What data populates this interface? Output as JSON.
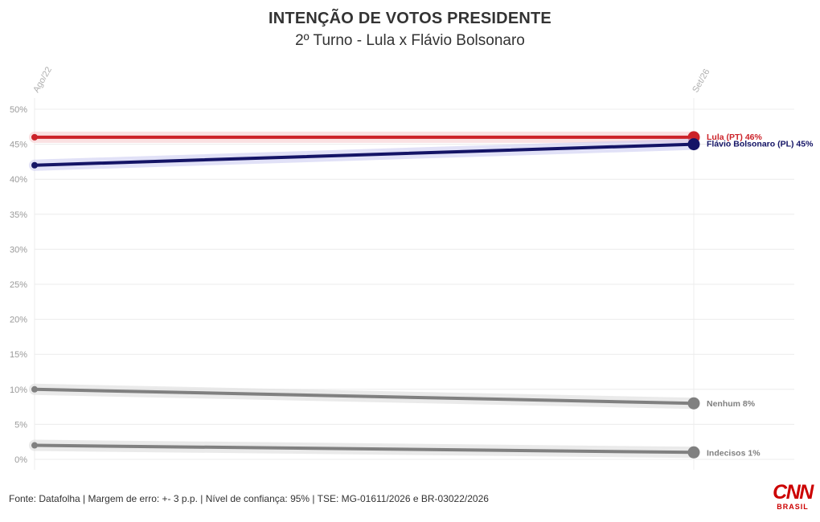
{
  "header": {
    "title": "INTENÇÃO DE VOTOS PRESIDENTE",
    "subtitle": "2º Turno - Lula x Flávio Bolsonaro"
  },
  "footer": {
    "source": "Fonte: Datafolha | Margem de erro: +- 3 p.p. | Nível de confiança: 95% | TSE: MG-01611/2026 e BR-03022/2026"
  },
  "logo": {
    "text": "CNN",
    "subtext": "BRASIL"
  },
  "chart_data": {
    "type": "line",
    "x": [
      "Ago/22",
      "Set/26"
    ],
    "y_ticks": [
      "0%",
      "5%",
      "10%",
      "15%",
      "20%",
      "25%",
      "30%",
      "35%",
      "40%",
      "45%",
      "50%"
    ],
    "ylim": [
      0,
      50
    ],
    "grid": true,
    "series": [
      {
        "name": "Lula (PT)",
        "values": [
          46,
          46
        ],
        "color": "#cc2229",
        "end_label": "Lula (PT) 46%"
      },
      {
        "name": "Flávio Bolsonaro (PL)",
        "values": [
          42,
          45
        ],
        "color": "#141466",
        "end_label": "Flávio Bolsonaro (PL) 45%"
      },
      {
        "name": "Nenhum",
        "values": [
          10,
          8
        ],
        "color": "#808080",
        "end_label": "Nenhum 8%"
      },
      {
        "name": "Indecisos",
        "values": [
          2,
          1
        ],
        "color": "#808080",
        "end_label": "Indecisos 1%"
      }
    ]
  }
}
